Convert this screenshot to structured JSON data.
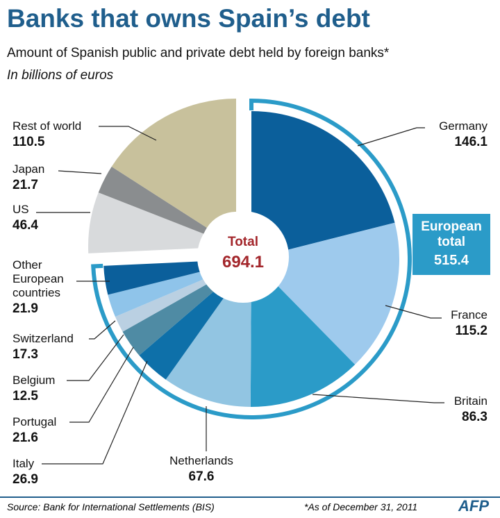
{
  "chart_data": {
    "type": "donut",
    "title": "Banks that owns Spain’s debt",
    "subtitle": "Amount of Spanish public and private debt held by foreign banks*",
    "unit_note": "In billions of euros",
    "categories": [
      "Germany",
      "France",
      "Britain",
      "Netherlands",
      "Italy",
      "Portugal",
      "Belgium",
      "Switzerland",
      "Other European countries",
      "US",
      "Japan",
      "Rest of world"
    ],
    "values": [
      146.1,
      115.2,
      86.3,
      67.6,
      26.9,
      21.6,
      12.5,
      17.3,
      21.9,
      46.4,
      21.7,
      110.5
    ],
    "colors": [
      "#0b5f9b",
      "#9ecaed",
      "#2b9bc8",
      "#92c5e2",
      "#0e70a9",
      "#4f8ba4",
      "#bad0e2",
      "#8fc4ea",
      "#0b5f9b",
      "#d8dadc",
      "#8a8d8f",
      "#c8c19c"
    ],
    "total_label": "Total",
    "total_value": 694.1,
    "group": {
      "label": "European total",
      "value": 515.4,
      "count": 9,
      "color": "#2b9bc8"
    },
    "source": "Source: Bank for International Settlements (BIS)",
    "footnote": "*As of December 31, 2011",
    "credit": "AFP"
  }
}
